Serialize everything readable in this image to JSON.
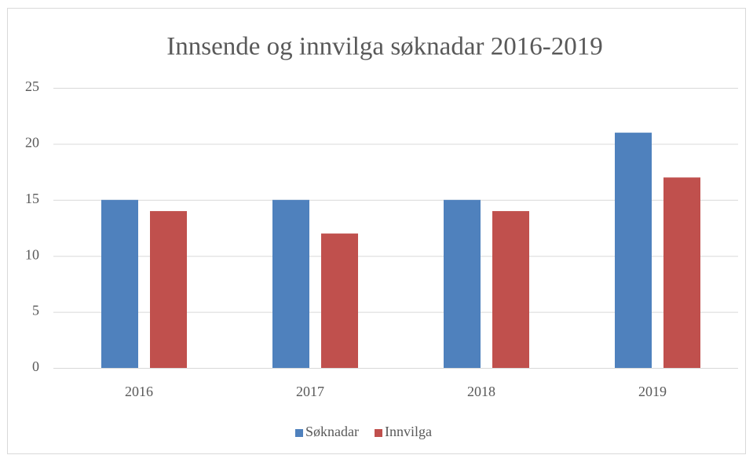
{
  "chart_data": {
    "type": "bar",
    "title": "Innsende og innvilga søknadar 2016-2019",
    "categories": [
      "2016",
      "2017",
      "2018",
      "2019"
    ],
    "series": [
      {
        "name": "Søknadar",
        "color": "#4f81bd",
        "values": [
          15,
          15,
          15,
          21
        ]
      },
      {
        "name": "Innvilga",
        "color": "#c0504d",
        "values": [
          14,
          12,
          14,
          17
        ]
      }
    ],
    "ylim": [
      0,
      25
    ],
    "yticks": [
      0,
      5,
      10,
      15,
      20,
      25
    ],
    "grid": true,
    "legend": "bottom"
  }
}
